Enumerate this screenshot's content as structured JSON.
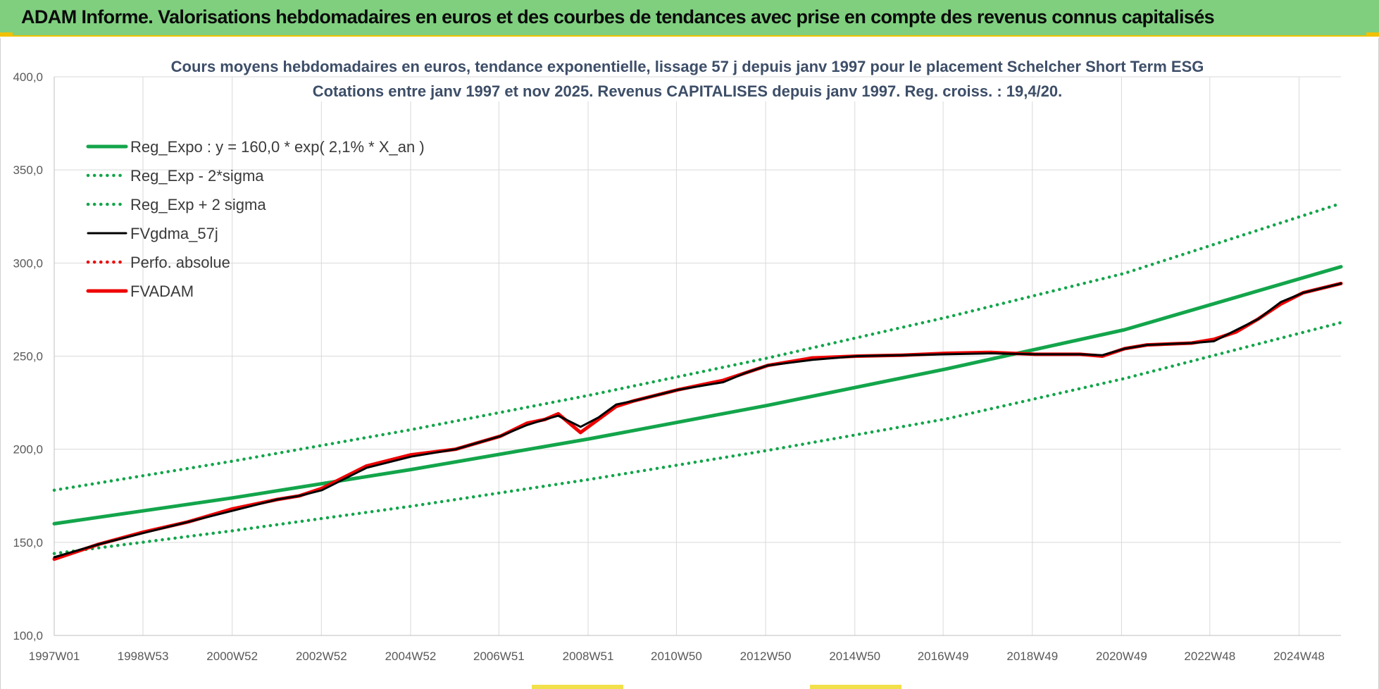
{
  "banner": {
    "title": "ADAM Informe. Valorisations hebdomadaires en euros et des courbes de tendances avec prise en compte des revenus connus capitalisés"
  },
  "colors": {
    "banner_bg": "#7fcf7f",
    "accent_yellow": "#f2c200",
    "reg_green": "#13a54b",
    "fv_black": "#000000",
    "fv_red": "#ee0000",
    "title_text": "#3d4e68"
  },
  "chart_data": {
    "type": "line",
    "title": "Cours moyens hebdomadaires en euros, tendance exponentielle, lissage 57 j depuis janv 1997 pour le placement Schelcher Short Term ESG",
    "subtitle": "Cotations entre janv 1997 et nov 2025. Revenus CAPITALISES depuis janv 1997. Reg. croiss. : 19,4/20.",
    "xlabel": "",
    "ylabel": "",
    "xlim": [
      1997.0,
      2025.85
    ],
    "ylim": [
      100,
      400
    ],
    "y_ticks": [
      {
        "value": 100,
        "label": "100,0"
      },
      {
        "value": 150,
        "label": "150,0"
      },
      {
        "value": 200,
        "label": "200,0"
      },
      {
        "value": 250,
        "label": "250,0"
      },
      {
        "value": 300,
        "label": "300,0"
      },
      {
        "value": 350,
        "label": "350,0"
      },
      {
        "value": 400,
        "label": "400,0"
      }
    ],
    "x_ticks": [
      {
        "value": 1997.0,
        "label": "1997W01"
      },
      {
        "value": 1998.99,
        "label": "1998W53"
      },
      {
        "value": 2000.99,
        "label": "2000W52"
      },
      {
        "value": 2002.99,
        "label": "2002W52"
      },
      {
        "value": 2004.99,
        "label": "2004W52"
      },
      {
        "value": 2006.97,
        "label": "2006W51"
      },
      {
        "value": 2008.97,
        "label": "2008W51"
      },
      {
        "value": 2010.95,
        "label": "2010W50"
      },
      {
        "value": 2012.95,
        "label": "2012W50"
      },
      {
        "value": 2014.95,
        "label": "2014W50"
      },
      {
        "value": 2016.93,
        "label": "2016W49"
      },
      {
        "value": 2018.93,
        "label": "2018W49"
      },
      {
        "value": 2020.93,
        "label": "2020W49"
      },
      {
        "value": 2022.91,
        "label": "2022W48"
      },
      {
        "value": 2024.91,
        "label": "2024W48"
      }
    ],
    "grid": true,
    "legend_position": "top-left",
    "series": [
      {
        "name": "Reg_Expo : y = 160,0 * exp( 2,1% *  X_an )",
        "style": "solid-thick",
        "color": "#13a54b",
        "x": [
          1997.0,
          2001.0,
          2005.0,
          2009.0,
          2013.0,
          2017.0,
          2021.0,
          2025.85
        ],
        "y": [
          160.0,
          173.9,
          189.1,
          205.6,
          223.6,
          243.1,
          264.2,
          298.0
        ]
      },
      {
        "name": "Reg_Exp - 2*sigma",
        "style": "dotted",
        "color": "#13a54b",
        "x": [
          1997.0,
          2001.0,
          2005.0,
          2009.0,
          2013.0,
          2017.0,
          2021.0,
          2025.85
        ],
        "y": [
          144.0,
          156.2,
          169.4,
          183.8,
          199.4,
          216.3,
          238.0,
          268.0
        ]
      },
      {
        "name": "Reg_Exp + 2 sigma",
        "style": "dotted",
        "color": "#13a54b",
        "x": [
          1997.0,
          2001.0,
          2005.0,
          2009.0,
          2013.0,
          2017.0,
          2021.0,
          2025.85
        ],
        "y": [
          178.0,
          193.6,
          210.5,
          229.0,
          249.0,
          270.8,
          294.5,
          332.0
        ]
      },
      {
        "name": "FVgdma_57j",
        "style": "solid",
        "color": "#000000",
        "x": [
          1997.0,
          1998.0,
          1999.0,
          2000.0,
          2001.0,
          2002.0,
          2002.5,
          2003.0,
          2004.0,
          2005.0,
          2006.0,
          2007.0,
          2007.6,
          2008.0,
          2008.3,
          2008.8,
          2009.2,
          2009.6,
          2010.0,
          2011.0,
          2012.0,
          2012.5,
          2013.0,
          2014.0,
          2015.0,
          2016.0,
          2017.0,
          2018.0,
          2019.0,
          2020.0,
          2020.5,
          2021.0,
          2021.5,
          2022.0,
          2022.5,
          2023.0,
          2023.5,
          2024.0,
          2024.5,
          2025.0,
          2025.85
        ],
        "y": [
          142.0,
          149.0,
          155.0,
          161.0,
          167.0,
          173.0,
          175.0,
          178.0,
          190.0,
          196.0,
          200.0,
          207.0,
          213.0,
          216.0,
          218.0,
          212.0,
          217.0,
          224.0,
          226.0,
          232.0,
          236.0,
          241.0,
          245.0,
          248.0,
          250.0,
          250.5,
          251.0,
          251.5,
          251.0,
          251.0,
          250.5,
          254.0,
          256.0,
          256.5,
          257.0,
          258.0,
          264.0,
          270.0,
          279.0,
          284.0,
          289.0
        ]
      },
      {
        "name": "Perfo. absolue",
        "style": "dotted",
        "color": "#ee0000",
        "x": [],
        "y": []
      },
      {
        "name": "FVADAM",
        "style": "solid-thick",
        "color": "#ee0000",
        "x": [
          1997.0,
          1998.0,
          1999.0,
          2000.0,
          2001.0,
          2002.0,
          2002.5,
          2003.0,
          2004.0,
          2005.0,
          2006.0,
          2007.0,
          2007.6,
          2008.0,
          2008.3,
          2008.8,
          2009.2,
          2009.6,
          2010.0,
          2011.0,
          2012.0,
          2012.5,
          2013.0,
          2014.0,
          2015.0,
          2016.0,
          2017.0,
          2018.0,
          2019.0,
          2020.0,
          2020.5,
          2021.0,
          2021.5,
          2022.0,
          2022.5,
          2023.0,
          2023.5,
          2024.0,
          2024.5,
          2025.0,
          2025.85
        ],
        "y": [
          141.0,
          149.0,
          155.5,
          161.0,
          168.0,
          173.0,
          175.0,
          179.0,
          191.0,
          197.0,
          200.0,
          207.0,
          214.0,
          216.0,
          219.0,
          209.0,
          216.0,
          223.0,
          226.0,
          232.0,
          237.0,
          241.0,
          245.0,
          249.0,
          250.0,
          250.5,
          251.5,
          252.0,
          251.0,
          251.0,
          250.0,
          254.0,
          256.0,
          256.5,
          257.0,
          259.0,
          263.0,
          270.0,
          278.0,
          284.0,
          289.0
        ]
      }
    ]
  }
}
